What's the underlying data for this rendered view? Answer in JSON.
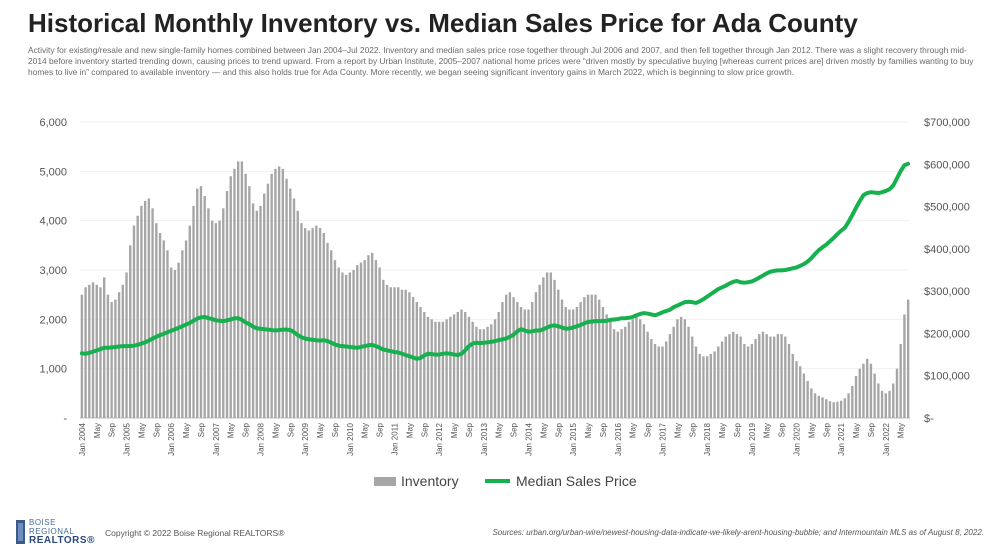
{
  "title": "Historical Monthly Inventory vs. Median Sales Price for Ada County",
  "subtitle": "Activity for existing/resale and new single-family homes combined between Jan 2004–Jul 2022. Inventory and median sales price rose together through Jul 2006 and 2007, and then fell together through Jan 2012. There was a slight recovery through mid-2014 before inventory started trending down, causing prices to trend upward. From a report by Urban Institute, 2005–2007 national home prices were “driven mostly by speculative buying [whereas current prices are] driven mostly by families wanting to buy homes to live in” compared to available inventory — and this also holds true for Ada County. More recently, we began seeing significant inventory gains in March 2022, which is beginning to slow price growth.",
  "footer": {
    "logo_line1": "BOISE",
    "logo_line2": "REGIONAL",
    "logo_line3": "REALTORS®",
    "copyright": "Copyright © 2022 Boise Regional REALTORS®",
    "sources": "Sources: urban.org/urban-wire/newest-housing-data-indicate-we-likely-arent-housing-bubble; and Intermountain MLS as of August 8, 2022."
  },
  "chart_data": {
    "type": "bar+line",
    "x_start": "2004-01",
    "x_end": "2022-07",
    "frequency": "monthly",
    "y_left_ticks": [
      "-",
      "1,000",
      "2,000",
      "3,000",
      "4,000",
      "5,000",
      "6,000"
    ],
    "y_left_range": [
      0,
      6000
    ],
    "y_right_ticks": [
      "$-",
      "$100,000",
      "$200,000",
      "$300,000",
      "$400,000",
      "$500,000",
      "$600,000",
      "$700,000"
    ],
    "y_right_range": [
      0,
      700000
    ],
    "x_tick_labels": [
      "Jan 2004",
      "May",
      "Sep",
      "Jan 2005",
      "May",
      "Sep",
      "Jan 2006",
      "May",
      "Sep",
      "Jan 2007",
      "May",
      "Sep",
      "Jan 2008",
      "May",
      "Sep",
      "Jan 2009",
      "May",
      "Sep",
      "Jan 2010",
      "May",
      "Sep",
      "Jan 2011",
      "May",
      "Sep",
      "Jan 2012",
      "May",
      "Sep",
      "Jan 2013",
      "May",
      "Sep",
      "Jan 2014",
      "May",
      "Sep",
      "Jan 2015",
      "May",
      "Sep",
      "Jan 2016",
      "May",
      "Sep",
      "Jan 2017",
      "May",
      "Sep",
      "Jan 2018",
      "May",
      "Sep",
      "Jan 2019",
      "May",
      "Sep",
      "Jan 2020",
      "May",
      "Sep",
      "Jan 2021",
      "May",
      "Sep",
      "Jan 2022",
      "May"
    ],
    "inventory_color": "#a6a6a6",
    "price_color": "#16b04f",
    "series": [
      {
        "name": "Inventory",
        "axis": "left",
        "kind": "bar",
        "values": [
          2500,
          2650,
          2700,
          2750,
          2700,
          2650,
          2850,
          2500,
          2350,
          2400,
          2550,
          2700,
          2950,
          3500,
          3900,
          4100,
          4300,
          4400,
          4450,
          4250,
          3950,
          3750,
          3600,
          3400,
          3050,
          3000,
          3150,
          3400,
          3600,
          3900,
          4300,
          4650,
          4700,
          4500,
          4250,
          4000,
          3950,
          4000,
          4250,
          4600,
          4900,
          5050,
          5200,
          5200,
          4950,
          4700,
          4350,
          4200,
          4300,
          4550,
          4750,
          4950,
          5050,
          5100,
          5050,
          4850,
          4650,
          4450,
          4200,
          3950,
          3850,
          3800,
          3850,
          3900,
          3850,
          3750,
          3550,
          3400,
          3200,
          3050,
          2950,
          2900,
          2950,
          3000,
          3100,
          3150,
          3200,
          3300,
          3350,
          3200,
          3050,
          2800,
          2700,
          2650,
          2650,
          2650,
          2600,
          2600,
          2550,
          2450,
          2350,
          2250,
          2150,
          2050,
          2000,
          1950,
          1950,
          1950,
          2000,
          2050,
          2100,
          2150,
          2200,
          2150,
          2050,
          1950,
          1850,
          1800,
          1800,
          1850,
          1900,
          2000,
          2150,
          2350,
          2500,
          2550,
          2450,
          2350,
          2250,
          2200,
          2200,
          2350,
          2550,
          2700,
          2850,
          2950,
          2950,
          2800,
          2600,
          2400,
          2250,
          2200,
          2200,
          2250,
          2350,
          2450,
          2500,
          2500,
          2500,
          2400,
          2250,
          2100,
          1950,
          1800,
          1750,
          1800,
          1850,
          1950,
          2000,
          2050,
          2000,
          1900,
          1750,
          1600,
          1500,
          1450,
          1450,
          1550,
          1700,
          1850,
          2000,
          2050,
          2000,
          1850,
          1650,
          1450,
          1300,
          1250,
          1250,
          1300,
          1350,
          1450,
          1550,
          1650,
          1700,
          1750,
          1700,
          1650,
          1500,
          1450,
          1500,
          1600,
          1700,
          1750,
          1700,
          1650,
          1650,
          1700,
          1700,
          1650,
          1500,
          1300,
          1150,
          1050,
          900,
          750,
          600,
          500,
          450,
          420,
          380,
          340,
          320,
          330,
          350,
          400,
          500,
          650,
          850,
          1000,
          1100,
          1200,
          1100,
          900,
          700,
          550,
          500,
          550,
          700,
          1000,
          1500,
          2100,
          2400
        ]
      },
      {
        "name": "Median Sales Price",
        "axis": "right",
        "kind": "line",
        "values": [
          153000,
          152000,
          154000,
          157000,
          160000,
          163000,
          166000,
          166000,
          167000,
          168000,
          169000,
          170000,
          170000,
          170000,
          171000,
          173000,
          176000,
          179000,
          183000,
          188000,
          192000,
          196000,
          199000,
          203000,
          206000,
          210000,
          213000,
          217000,
          221000,
          225000,
          230000,
          235000,
          238000,
          239000,
          236000,
          234000,
          231000,
          230000,
          229000,
          231000,
          233000,
          236000,
          236000,
          232000,
          226000,
          222000,
          216000,
          212000,
          211000,
          210000,
          209000,
          208000,
          207000,
          208000,
          209000,
          209000,
          208000,
          203000,
          196000,
          191000,
          188000,
          186000,
          185000,
          184000,
          183000,
          184000,
          182000,
          178000,
          174000,
          171000,
          170000,
          169000,
          168000,
          167000,
          166000,
          168000,
          170000,
          172000,
          173000,
          170000,
          166000,
          162000,
          160000,
          158000,
          156000,
          155000,
          152000,
          149000,
          146000,
          143000,
          140000,
          142000,
          148000,
          152000,
          151000,
          150000,
          150000,
          152000,
          153000,
          152000,
          150000,
          149000,
          152000,
          160000,
          170000,
          176000,
          178000,
          177000,
          178000,
          179000,
          180000,
          182000,
          184000,
          186000,
          188000,
          192000,
          197000,
          205000,
          210000,
          207000,
          204000,
          205000,
          207000,
          207000,
          210000,
          214000,
          218000,
          219000,
          217000,
          214000,
          211000,
          212000,
          214000,
          217000,
          220000,
          224000,
          227000,
          228000,
          229000,
          229000,
          229000,
          230000,
          232000,
          233000,
          234000,
          236000,
          236000,
          237000,
          239000,
          243000,
          246000,
          248000,
          247000,
          245000,
          243000,
          246000,
          250000,
          253000,
          256000,
          262000,
          266000,
          270000,
          274000,
          275000,
          274000,
          272000,
          276000,
          281000,
          287000,
          293000,
          299000,
          305000,
          309000,
          313000,
          318000,
          322000,
          324000,
          321000,
          320000,
          321000,
          323000,
          327000,
          332000,
          337000,
          342000,
          346000,
          348000,
          349000,
          349000,
          350000,
          352000,
          354000,
          356000,
          360000,
          364000,
          370000,
          378000,
          388000,
          397000,
          404000,
          410000,
          418000,
          426000,
          435000,
          443000,
          450000,
          464000,
          480000,
          497000,
          513000,
          527000,
          532000,
          534000,
          533000,
          532000,
          534000,
          537000,
          541000,
          550000,
          567000,
          584000,
          598000,
          601000
        ]
      }
    ]
  },
  "legend": {
    "inventory_label": "Inventory",
    "price_label": "Median Sales Price",
    "placement": "bottom-center"
  }
}
